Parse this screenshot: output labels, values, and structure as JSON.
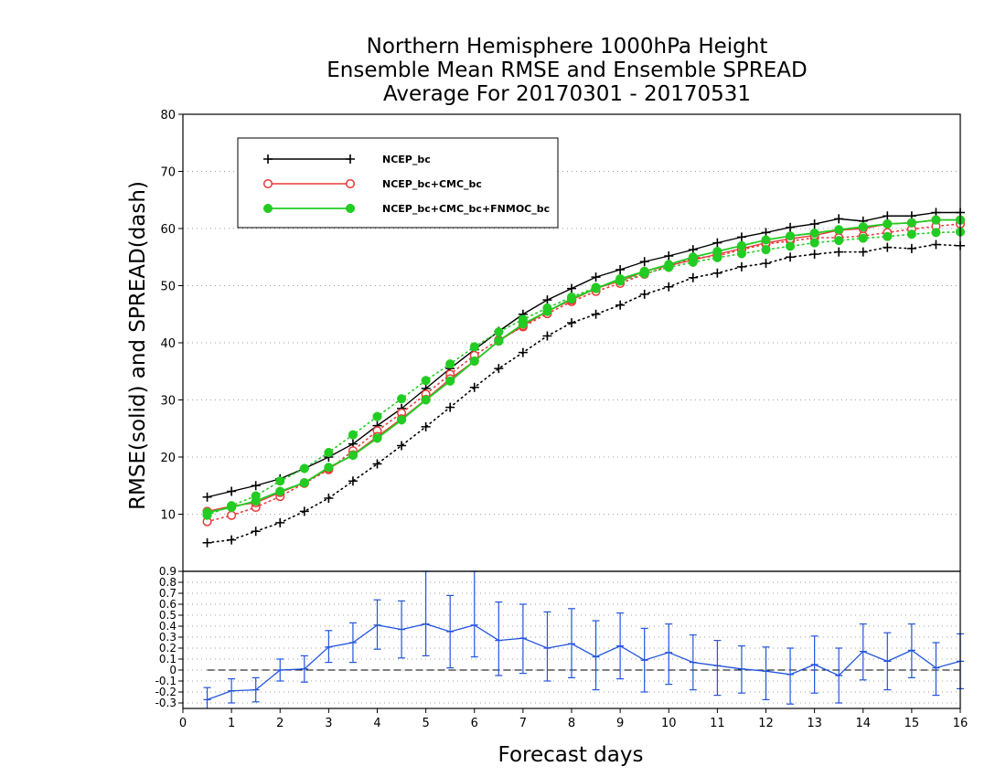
{
  "colors": {
    "ncep": "#000000",
    "cmc": "#e83a3a",
    "fnmoc": "#22cc22",
    "diff": "#2255dd",
    "grid": "#a0a0a0"
  },
  "chart_data": [
    {
      "type": "line",
      "title_lines": [
        "Northern Hemisphere 1000hPa Height",
        "Ensemble Mean RMSE and Ensemble SPREAD",
        "Average For 20170301 - 20170531"
      ],
      "ylabel": "RMSE(solid) and SPREAD(dash)",
      "xlabel": "Forecast days",
      "xlim": [
        0,
        16
      ],
      "ylim": [
        0,
        80
      ],
      "x_ticks": [
        0,
        1,
        2,
        3,
        4,
        5,
        6,
        7,
        8,
        9,
        10,
        11,
        12,
        13,
        14,
        15,
        16
      ],
      "y_ticks": [
        10,
        20,
        30,
        40,
        50,
        60,
        70,
        80
      ],
      "grid": "horizontal dotted",
      "legend_position": "top-left",
      "x": [
        0.5,
        1,
        1.5,
        2,
        2.5,
        3,
        3.5,
        4,
        4.5,
        5,
        5.5,
        6,
        6.5,
        7,
        7.5,
        8,
        8.5,
        9,
        9.5,
        10,
        10.5,
        11,
        11.5,
        12,
        12.5,
        13,
        13.5,
        14,
        14.5,
        15,
        15.5,
        16
      ],
      "series": [
        {
          "name": "NCEP_bc",
          "color_key": "ncep",
          "marker": "plus",
          "rmse": [
            13,
            14,
            15,
            16.2,
            18,
            20,
            22.3,
            25.5,
            28.5,
            32,
            35.5,
            38.8,
            42,
            45,
            47.5,
            49.5,
            51.5,
            52.8,
            54.2,
            55.2,
            56.3,
            57.5,
            58.5,
            59.3,
            60.2,
            60.8,
            61.7,
            61.3,
            62.2,
            62.2,
            62.8,
            62.8
          ],
          "spread": [
            5,
            5.5,
            7,
            8.5,
            10.5,
            12.8,
            15.8,
            18.8,
            22,
            25.3,
            28.7,
            32.2,
            35.5,
            38.3,
            41.2,
            43.5,
            45,
            46.6,
            48.5,
            49.8,
            51.4,
            52.2,
            53.3,
            53.9,
            55,
            55.5,
            55.9,
            55.9,
            56.7,
            56.5,
            57.2,
            57
          ]
        },
        {
          "name": "NCEP_bc+CMC_bc",
          "color_key": "cmc",
          "marker": "open-circle",
          "rmse": [
            10.5,
            11.4,
            12,
            13.8,
            15.5,
            18,
            20.4,
            23.6,
            26.7,
            30.1,
            33.7,
            36.8,
            40.3,
            43,
            45.5,
            47.5,
            49.5,
            50.8,
            52.5,
            53.5,
            54.5,
            55.5,
            56.5,
            57.5,
            58.2,
            58.8,
            59.7,
            60,
            60.8,
            61,
            61.5,
            61.5
          ],
          "spread": [
            8.7,
            9.8,
            11.2,
            13.1,
            15.4,
            17.8,
            21.1,
            24.6,
            27.7,
            31,
            34.5,
            37.8,
            40.5,
            42.8,
            45.1,
            47.2,
            49,
            50.4,
            52,
            53.4,
            54.8,
            55.2,
            56.3,
            57.3,
            57.8,
            58.4,
            58.4,
            58.7,
            59.3,
            59.9,
            60.4,
            60.8
          ]
        },
        {
          "name": "NCEP_bc+CMC_bc+FNMOC_bc",
          "color_key": "fnmoc",
          "marker": "filled-circle",
          "rmse": [
            10.3,
            11.2,
            12.3,
            14,
            15.5,
            18.2,
            20.3,
            23.3,
            26.5,
            30,
            33.3,
            36.8,
            40.3,
            43.3,
            45.5,
            47.7,
            49.5,
            51.2,
            52.5,
            53.7,
            55,
            56,
            57,
            58,
            58.7,
            59.2,
            59.8,
            60.3,
            60.8,
            61,
            61.5,
            61.5
          ],
          "spread": [
            9.8,
            11.5,
            13.2,
            15.8,
            18,
            20.8,
            23.9,
            27.1,
            30.2,
            33.4,
            36.3,
            39.3,
            41.9,
            44.1,
            46.1,
            48,
            49.7,
            50.8,
            52.1,
            53.2,
            54.1,
            54.9,
            55.6,
            56.3,
            56.9,
            57.5,
            57.9,
            58.3,
            58.6,
            59,
            59.3,
            59.4
          ]
        }
      ]
    },
    {
      "type": "line",
      "xlim": [
        0,
        16
      ],
      "ylim": [
        -0.35,
        0.9
      ],
      "y_ticks": [
        -0.3,
        -0.2,
        -0.1,
        0,
        0.1,
        0.2,
        0.3,
        0.4,
        0.5,
        0.6,
        0.7,
        0.8,
        0.9
      ],
      "y_tick_labels": [
        "-0.3",
        "-0.2",
        "-0.1",
        "0",
        "0.1",
        "0.2",
        "0.3",
        "0.4",
        "0.5",
        "0.6",
        "0.7",
        "0.8",
        "0.9"
      ],
      "grid": "horizontal dotted",
      "zero_line": "dashed",
      "color_key": "diff",
      "x": [
        0.5,
        1,
        1.5,
        2,
        2.5,
        3,
        3.5,
        4,
        4.5,
        5,
        5.5,
        6,
        6.5,
        7,
        7.5,
        8,
        8.5,
        9,
        9.5,
        10,
        10.5,
        11,
        11.5,
        12,
        12.5,
        13,
        13.5,
        14,
        14.5,
        15,
        15.5,
        16
      ],
      "values": [
        -0.27,
        -0.19,
        -0.18,
        0,
        0.01,
        0.21,
        0.25,
        0.41,
        0.37,
        0.42,
        0.35,
        0.41,
        0.27,
        0.29,
        0.2,
        0.24,
        0.12,
        0.22,
        0.09,
        0.16,
        0.07,
        0.04,
        0.01,
        -0.01,
        -0.04,
        0.05,
        -0.05,
        0.17,
        0.08,
        0.18,
        0.02,
        0.08
      ],
      "err_low": [
        -0.37,
        -0.3,
        -0.29,
        -0.1,
        -0.11,
        0.07,
        0.07,
        0.19,
        0.11,
        0.13,
        0.02,
        0.12,
        -0.05,
        -0.03,
        -0.1,
        -0.07,
        -0.18,
        -0.08,
        -0.2,
        -0.13,
        -0.18,
        -0.23,
        -0.21,
        -0.27,
        -0.31,
        -0.21,
        -0.3,
        -0.09,
        -0.18,
        -0.07,
        -0.23,
        -0.17
      ],
      "err_high": [
        -0.16,
        -0.08,
        -0.07,
        0.1,
        0.13,
        0.36,
        0.43,
        0.64,
        0.63,
        0.9,
        0.68,
        0.9,
        0.62,
        0.6,
        0.53,
        0.56,
        0.45,
        0.52,
        0.38,
        0.42,
        0.32,
        0.27,
        0.22,
        0.21,
        0.2,
        0.31,
        0.2,
        0.42,
        0.34,
        0.42,
        0.25,
        0.33
      ]
    }
  ]
}
